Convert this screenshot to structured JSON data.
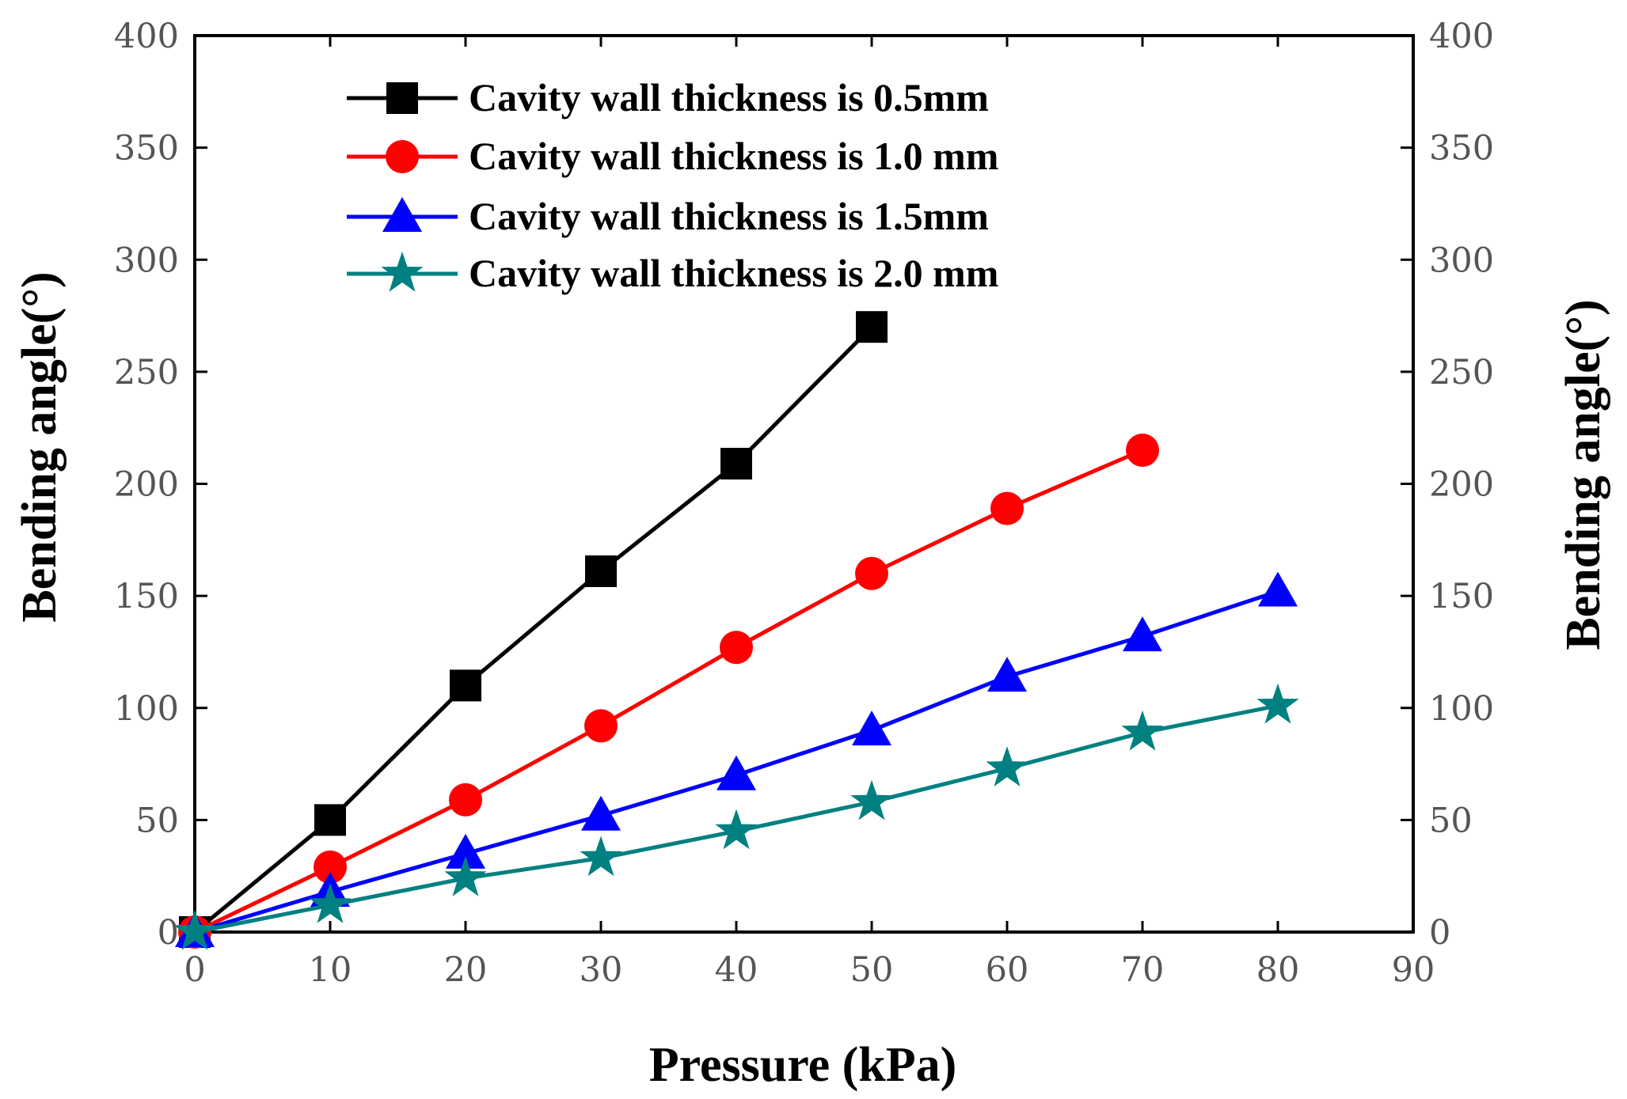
{
  "chart_data": {
    "type": "line",
    "xlabel": "Pressure (kPa)",
    "ylabel": "Bending angle(°)",
    "ylabel_right": "Bending angle(°)",
    "xlim": [
      0,
      90
    ],
    "ylim": [
      0,
      400
    ],
    "x_ticks": [
      "0",
      "10",
      "20",
      "30",
      "40",
      "50",
      "60",
      "70",
      "80",
      "90"
    ],
    "y_ticks": [
      "0",
      "50",
      "100",
      "150",
      "200",
      "250",
      "300",
      "350",
      "400"
    ],
    "grid": false,
    "legend_position": "top-left",
    "series": [
      {
        "name": "Cavity wall thickness is 0.5mm",
        "color": "#000000",
        "marker": "square",
        "x": [
          0,
          10,
          20,
          30,
          40,
          50
        ],
        "y": [
          0,
          50,
          110,
          161,
          209,
          270
        ]
      },
      {
        "name": "Cavity wall thickness is 1.0 mm",
        "color": "#ff0000",
        "marker": "circle",
        "x": [
          0,
          10,
          20,
          30,
          40,
          50,
          60,
          70
        ],
        "y": [
          0,
          29,
          59,
          92,
          127,
          160,
          189,
          215
        ]
      },
      {
        "name": "Cavity wall thickness is 1.5mm",
        "color": "#0000ff",
        "marker": "triangle",
        "x": [
          0,
          10,
          20,
          30,
          40,
          50,
          60,
          70,
          80
        ],
        "y": [
          0,
          18,
          35,
          52,
          70,
          90,
          114,
          132,
          152
        ]
      },
      {
        "name": "Cavity wall thickness is 2.0 mm",
        "color": "#008080",
        "marker": "star",
        "x": [
          0,
          10,
          20,
          30,
          40,
          50,
          60,
          70,
          80
        ],
        "y": [
          0,
          12,
          24,
          33,
          45,
          58,
          73,
          89,
          101
        ]
      }
    ]
  }
}
